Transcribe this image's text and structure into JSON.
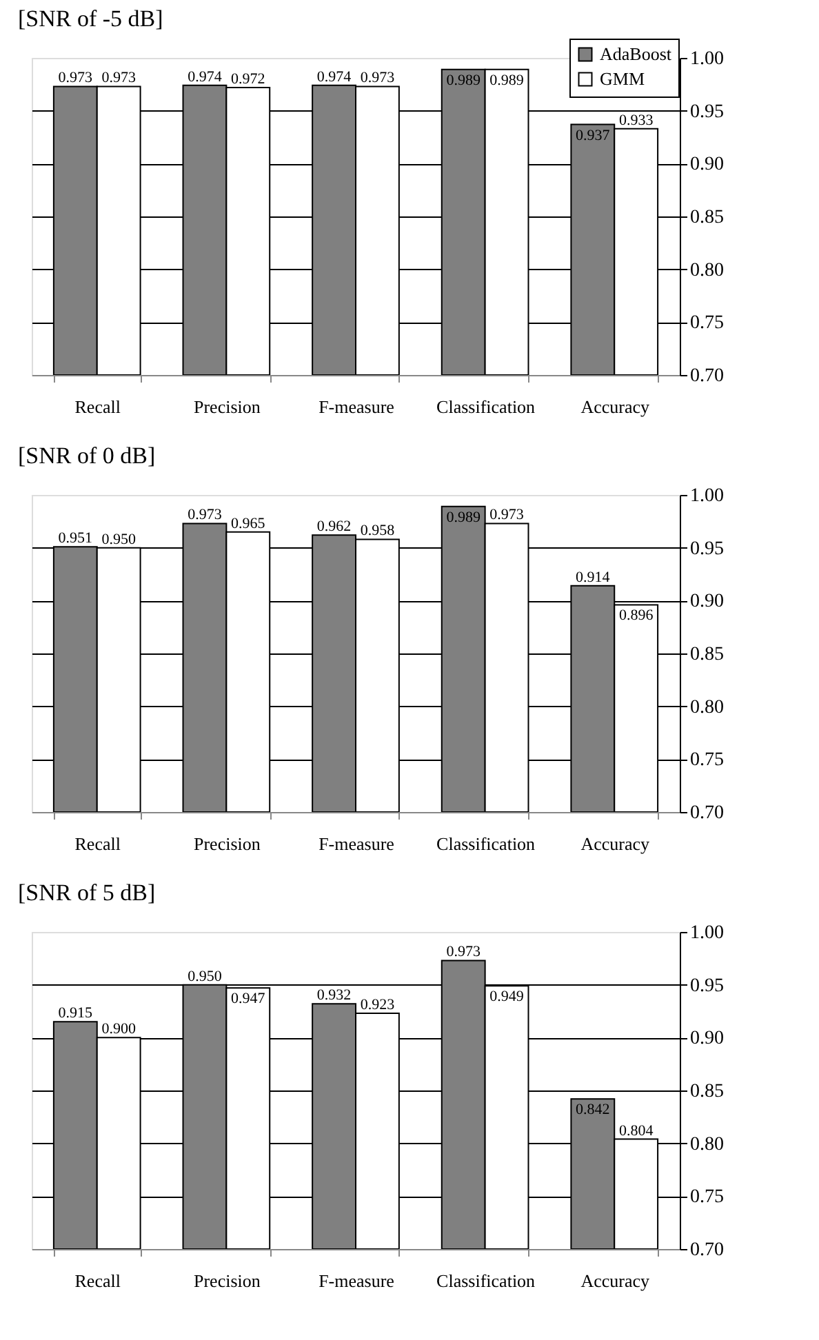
{
  "chart_data": [
    {
      "type": "bar",
      "title": "[SNR of -5 dB]",
      "categories": [
        "Recall",
        "Precision",
        "F-measure",
        "Classification",
        "Accuracy"
      ],
      "series": [
        {
          "name": "AdaBoost",
          "color": "#808080",
          "values": [
            0.973,
            0.974,
            0.974,
            0.989,
            0.937
          ],
          "value_labels": [
            "0.973",
            "0.974",
            "0.974",
            "0.989",
            "0.937"
          ]
        },
        {
          "name": "GMM",
          "color": "#ffffff",
          "values": [
            0.973,
            0.972,
            0.973,
            0.989,
            0.933
          ],
          "value_labels": [
            "0.973",
            "0.972",
            "0.973",
            "0.989",
            "0.933"
          ]
        }
      ],
      "ylim": [
        0.7,
        1.0
      ],
      "yticks": [
        {
          "value": 0.7,
          "label": "0.70"
        },
        {
          "value": 0.75,
          "label": "0.75"
        },
        {
          "value": 0.8,
          "label": "0.80"
        },
        {
          "value": 0.85,
          "label": "0.85"
        },
        {
          "value": 0.9,
          "label": "0.90"
        },
        {
          "value": 0.95,
          "label": "0.95"
        },
        {
          "value": 1.0,
          "label": "1.00"
        }
      ],
      "grid": "y",
      "legend": "top right"
    },
    {
      "type": "bar",
      "title": "[SNR of 0 dB]",
      "categories": [
        "Recall",
        "Precision",
        "F-measure",
        "Classification",
        "Accuracy"
      ],
      "series": [
        {
          "name": "AdaBoost",
          "color": "#808080",
          "values": [
            0.951,
            0.973,
            0.962,
            0.989,
            0.914
          ],
          "value_labels": [
            "0.951",
            "0.973",
            "0.962",
            "0.989",
            "0.914"
          ]
        },
        {
          "name": "GMM",
          "color": "#ffffff",
          "values": [
            0.95,
            0.965,
            0.958,
            0.973,
            0.896
          ],
          "value_labels": [
            "0.950",
            "0.965",
            "0.958",
            "0.973",
            "0.896"
          ]
        }
      ],
      "ylim": [
        0.7,
        1.0
      ],
      "yticks": [
        {
          "value": 0.7,
          "label": "0.70"
        },
        {
          "value": 0.75,
          "label": "0.75"
        },
        {
          "value": 0.8,
          "label": "0.80"
        },
        {
          "value": 0.85,
          "label": "0.85"
        },
        {
          "value": 0.9,
          "label": "0.90"
        },
        {
          "value": 0.95,
          "label": "0.95"
        },
        {
          "value": 1.0,
          "label": "1.00"
        }
      ],
      "grid": "y",
      "legend": "top right"
    },
    {
      "type": "bar",
      "title": "[SNR of 5 dB]",
      "categories": [
        "Recall",
        "Precision",
        "F-measure",
        "Classification",
        "Accuracy"
      ],
      "series": [
        {
          "name": "AdaBoost",
          "color": "#808080",
          "values": [
            0.915,
            0.95,
            0.932,
            0.973,
            0.842
          ],
          "value_labels": [
            "0.915",
            "0.950",
            "0.932",
            "0.973",
            "0.842"
          ]
        },
        {
          "name": "GMM",
          "color": "#ffffff",
          "values": [
            0.9,
            0.947,
            0.923,
            0.949,
            0.804
          ],
          "value_labels": [
            "0.900",
            "0.947",
            "0.923",
            "0.949",
            "0.804"
          ]
        }
      ],
      "ylim": [
        0.7,
        1.0
      ],
      "yticks": [
        {
          "value": 0.7,
          "label": "0.70"
        },
        {
          "value": 0.75,
          "label": "0.75"
        },
        {
          "value": 0.8,
          "label": "0.80"
        },
        {
          "value": 0.85,
          "label": "0.85"
        },
        {
          "value": 0.9,
          "label": "0.90"
        },
        {
          "value": 0.95,
          "label": "0.95"
        },
        {
          "value": 1.0,
          "label": "1.00"
        }
      ],
      "grid": "y",
      "legend": "top right"
    }
  ]
}
